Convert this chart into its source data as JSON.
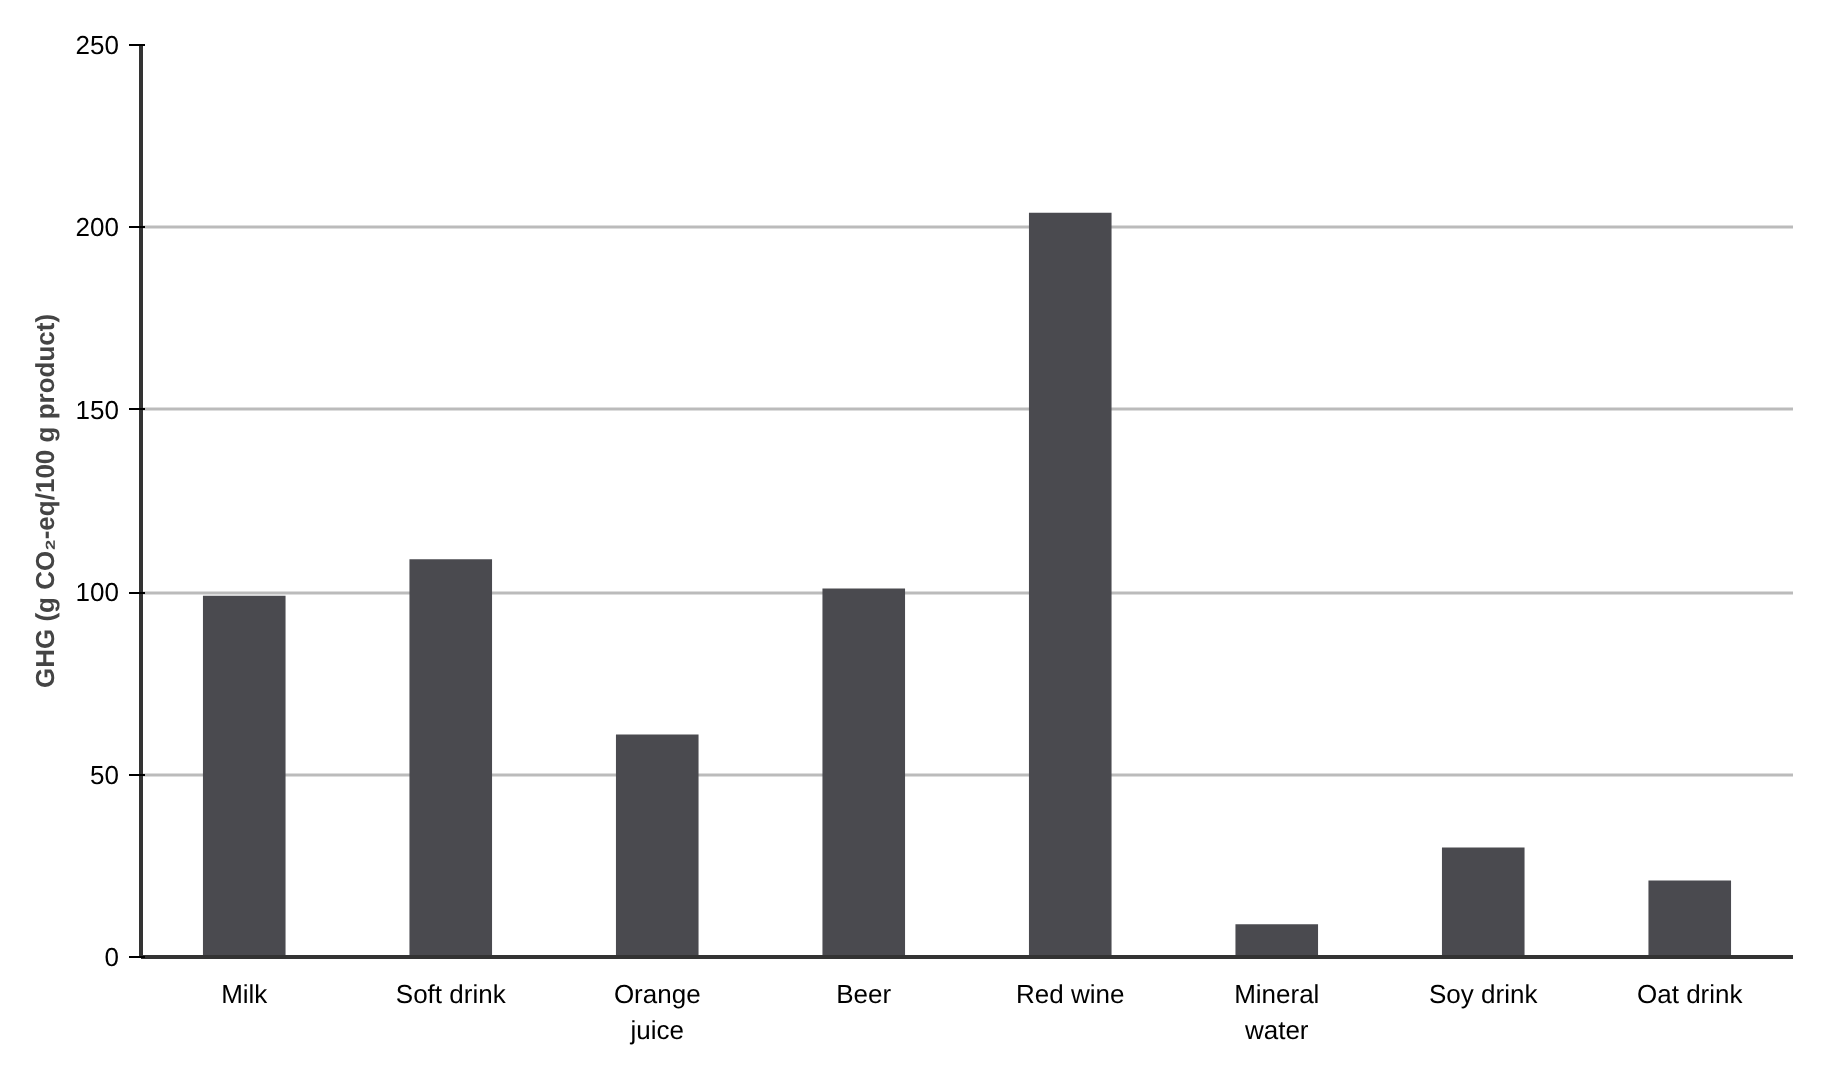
{
  "chart_data": {
    "type": "bar",
    "ylabel": "GHG (g CO₂-eq/100 g product)",
    "categories": [
      "Milk",
      "Soft drink",
      "Orange juice",
      "Beer",
      "Red wine",
      "Mineral water",
      "Soy drink",
      "Oat drink"
    ],
    "values": [
      99,
      109,
      61,
      101,
      204,
      9,
      30,
      21
    ],
    "color": "#4a4a4f",
    "ylim": [
      0,
      250
    ],
    "yticks": [
      0,
      50,
      100,
      150,
      200,
      250
    ],
    "grid": "y"
  }
}
